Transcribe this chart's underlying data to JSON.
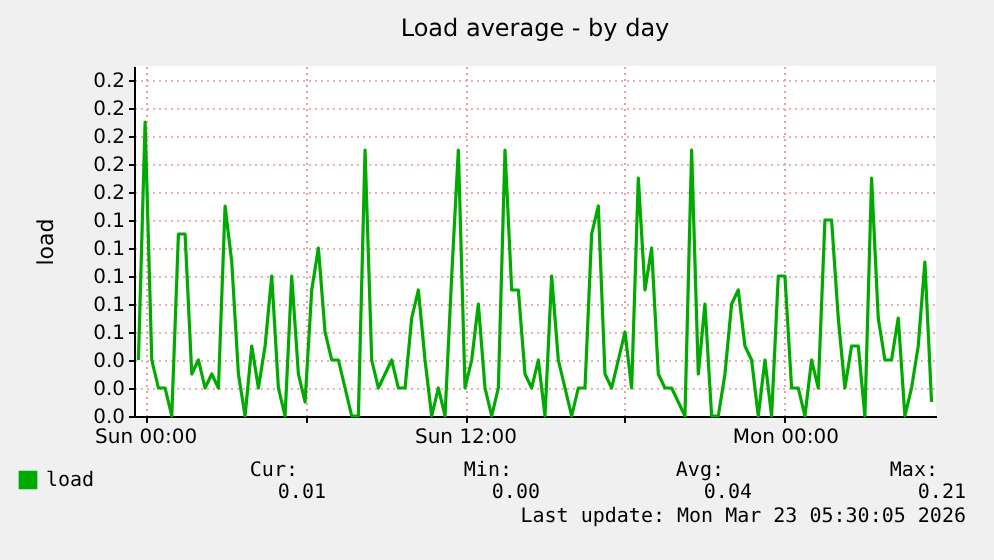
{
  "chart_data": {
    "type": "line",
    "title": "Load average - by day",
    "ylabel": "load",
    "x": [
      "2026-03-21T23:45",
      "2026-03-22T00:00",
      "2026-03-22T00:15",
      "2026-03-22T00:30",
      "2026-03-22T00:45",
      "2026-03-22T01:00",
      "2026-03-22T01:15",
      "2026-03-22T01:30",
      "2026-03-22T01:45",
      "2026-03-22T02:00",
      "2026-03-22T02:15",
      "2026-03-22T02:30",
      "2026-03-22T02:45",
      "2026-03-22T03:00",
      "2026-03-22T03:15",
      "2026-03-22T03:30",
      "2026-03-22T03:45",
      "2026-03-22T04:00",
      "2026-03-22T04:15",
      "2026-03-22T04:30",
      "2026-03-22T04:45",
      "2026-03-22T05:00",
      "2026-03-22T05:15",
      "2026-03-22T05:30",
      "2026-03-22T05:45",
      "2026-03-22T06:00",
      "2026-03-22T06:15",
      "2026-03-22T06:30",
      "2026-03-22T06:45",
      "2026-03-22T07:00",
      "2026-03-22T07:15",
      "2026-03-22T07:30",
      "2026-03-22T07:45",
      "2026-03-22T08:00",
      "2026-03-22T08:15",
      "2026-03-22T08:30",
      "2026-03-22T08:45",
      "2026-03-22T09:00",
      "2026-03-22T09:15",
      "2026-03-22T09:30",
      "2026-03-22T09:45",
      "2026-03-22T10:00",
      "2026-03-22T10:15",
      "2026-03-22T10:30",
      "2026-03-22T10:45",
      "2026-03-22T11:00",
      "2026-03-22T11:15",
      "2026-03-22T11:30",
      "2026-03-22T11:45",
      "2026-03-22T12:00",
      "2026-03-22T12:15",
      "2026-03-22T12:30",
      "2026-03-22T12:45",
      "2026-03-22T13:00",
      "2026-03-22T13:15",
      "2026-03-22T13:30",
      "2026-03-22T13:45",
      "2026-03-22T14:00",
      "2026-03-22T14:15",
      "2026-03-22T14:30",
      "2026-03-22T14:45",
      "2026-03-22T15:00",
      "2026-03-22T15:15",
      "2026-03-22T15:30",
      "2026-03-22T15:45",
      "2026-03-22T16:00",
      "2026-03-22T16:15",
      "2026-03-22T16:30",
      "2026-03-22T16:45",
      "2026-03-22T17:00",
      "2026-03-22T17:15",
      "2026-03-22T17:30",
      "2026-03-22T17:45",
      "2026-03-22T18:00",
      "2026-03-22T18:15",
      "2026-03-22T18:30",
      "2026-03-22T18:45",
      "2026-03-22T19:00",
      "2026-03-22T19:15",
      "2026-03-22T19:30",
      "2026-03-22T19:45",
      "2026-03-22T20:00",
      "2026-03-22T20:15",
      "2026-03-22T20:30",
      "2026-03-22T20:45",
      "2026-03-22T21:00",
      "2026-03-22T21:15",
      "2026-03-22T21:30",
      "2026-03-22T21:45",
      "2026-03-22T22:00",
      "2026-03-22T22:15",
      "2026-03-22T22:30",
      "2026-03-22T22:45",
      "2026-03-22T23:00",
      "2026-03-22T23:15",
      "2026-03-22T23:30",
      "2026-03-22T23:45",
      "2026-03-23T00:00",
      "2026-03-23T00:15",
      "2026-03-23T00:30",
      "2026-03-23T00:45",
      "2026-03-23T01:00",
      "2026-03-23T01:15",
      "2026-03-23T01:30",
      "2026-03-23T01:45",
      "2026-03-23T02:00",
      "2026-03-23T02:15",
      "2026-03-23T02:30",
      "2026-03-23T02:45",
      "2026-03-23T03:00",
      "2026-03-23T03:15",
      "2026-03-23T03:30",
      "2026-03-23T03:45",
      "2026-03-23T04:00",
      "2026-03-23T04:15",
      "2026-03-23T04:30",
      "2026-03-23T04:45",
      "2026-03-23T05:00",
      "2026-03-23T05:15",
      "2026-03-23T05:30"
    ],
    "series": [
      {
        "name": "load",
        "color": "#00aa00",
        "values": [
          0.04,
          0.21,
          0.04,
          0.02,
          0.02,
          0,
          0.13,
          0.13,
          0.03,
          0.04,
          0.02,
          0.03,
          0.02,
          0.15,
          0.11,
          0.03,
          0,
          0.05,
          0.02,
          0.05,
          0.1,
          0.02,
          0,
          0.1,
          0.03,
          0.01,
          0.09,
          0.12,
          0.06,
          0.04,
          0.04,
          0.02,
          0,
          0,
          0.19,
          0.04,
          0.02,
          0.03,
          0.04,
          0.02,
          0.02,
          0.07,
          0.09,
          0.04,
          0,
          0.02,
          0,
          0.1,
          0.19,
          0.02,
          0.04,
          0.08,
          0.02,
          0,
          0.02,
          0.19,
          0.09,
          0.09,
          0.03,
          0.02,
          0.04,
          0,
          0.1,
          0.04,
          0.02,
          0,
          0.02,
          0.02,
          0.13,
          0.15,
          0.03,
          0.02,
          0.04,
          0.06,
          0.02,
          0.17,
          0.09,
          0.12,
          0.03,
          0.02,
          0.02,
          0.01,
          0,
          0.19,
          0.03,
          0.08,
          0,
          0,
          0.03,
          0.08,
          0.09,
          0.05,
          0.04,
          0,
          0.04,
          0,
          0.1,
          0.1,
          0.02,
          0.02,
          0,
          0.04,
          0.02,
          0.14,
          0.14,
          0.07,
          0.02,
          0.05,
          0.05,
          0,
          0.17,
          0.07,
          0.04,
          0.04,
          0.07,
          0,
          0.02,
          0.05,
          0.11,
          0.01
        ]
      }
    ],
    "xlim": [
      "2026-03-21T23:35",
      "2026-03-23T05:40"
    ],
    "xticks": [
      {
        "value": "2026-03-22T00:00",
        "label": "Sun 00:00"
      },
      {
        "value": "2026-03-22T06:00",
        "label": null
      },
      {
        "value": "2026-03-22T12:00",
        "label": "Sun 12:00"
      },
      {
        "value": "2026-03-22T18:00",
        "label": null
      },
      {
        "value": "2026-03-23T00:00",
        "label": "Mon 00:00"
      }
    ],
    "ylim": [
      0,
      0.25
    ],
    "yticks": [
      {
        "value": 0,
        "label": "0.0"
      },
      {
        "value": 0.02,
        "label": "0.0"
      },
      {
        "value": 0.04,
        "label": "0.0"
      },
      {
        "value": 0.06,
        "label": "0.1"
      },
      {
        "value": 0.08,
        "label": "0.1"
      },
      {
        "value": 0.1,
        "label": "0.1"
      },
      {
        "value": 0.12,
        "label": "0.1"
      },
      {
        "value": 0.14,
        "label": "0.1"
      },
      {
        "value": 0.16,
        "label": "0.2"
      },
      {
        "value": 0.18,
        "label": "0.2"
      },
      {
        "value": 0.2,
        "label": "0.2"
      },
      {
        "value": 0.22,
        "label": "0.2"
      },
      {
        "value": 0.24,
        "label": "0.2"
      }
    ],
    "grid": true,
    "legend": "bottom left",
    "annotations": [
      "Cur:",
      "0.01",
      "Min:",
      "0.00",
      "Avg:",
      "0.04",
      "Max:",
      "0.21",
      "Last update: Mon Mar 23 05:30:05 2026"
    ]
  }
}
